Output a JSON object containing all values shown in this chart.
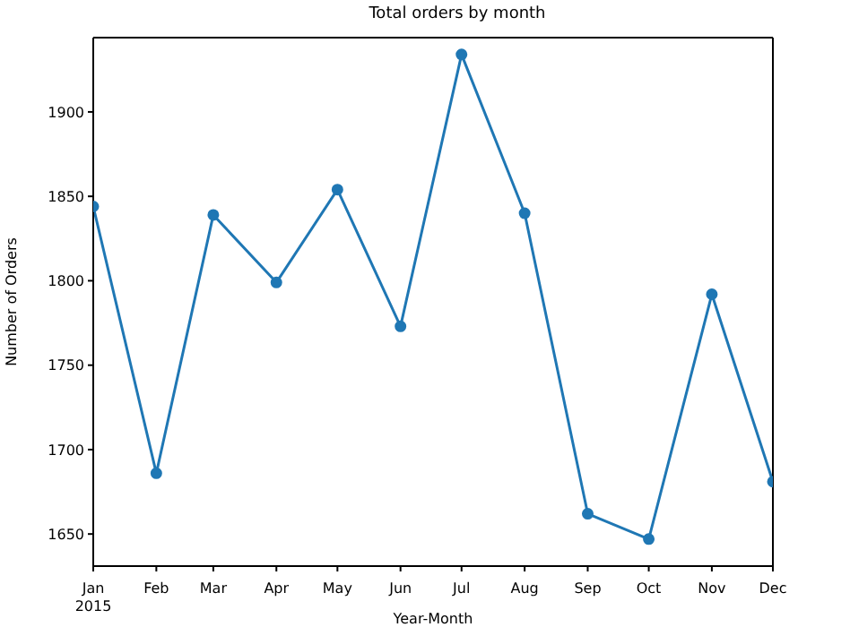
{
  "chart_data": {
    "type": "line",
    "title": "Total orders by month",
    "xlabel": "Year-Month",
    "ylabel": "Number of Orders",
    "x": [
      "2015-01",
      "2015-02",
      "2015-03",
      "2015-04",
      "2015-05",
      "2015-06",
      "2015-07",
      "2015-08",
      "2015-09",
      "2015-10",
      "2015-11",
      "2015-12"
    ],
    "series": [
      {
        "color": "#1f77b4",
        "values": [
          1844,
          1686,
          1839,
          1799,
          1854,
          1773,
          1934,
          1840,
          1662,
          1647,
          1792,
          1681
        ]
      }
    ],
    "xlim": [
      "2015-01",
      "2015-12"
    ],
    "xticks": [
      {
        "value": "2015-01",
        "label": "Jan\n2015"
      },
      {
        "value": "2015-02",
        "label": "Feb"
      },
      {
        "value": "2015-03",
        "label": "Mar"
      },
      {
        "value": "2015-04",
        "label": "Apr"
      },
      {
        "value": "2015-05",
        "label": "May"
      },
      {
        "value": "2015-06",
        "label": "Jun"
      },
      {
        "value": "2015-07",
        "label": "Jul"
      },
      {
        "value": "2015-08",
        "label": "Aug"
      },
      {
        "value": "2015-09",
        "label": "Sep"
      },
      {
        "value": "2015-10",
        "label": "Oct"
      },
      {
        "value": "2015-11",
        "label": "Nov"
      },
      {
        "value": "2015-12",
        "label": "Dec"
      }
    ],
    "ylim": [
      1631,
      1944
    ],
    "yticks": [
      1650,
      1700,
      1750,
      1800,
      1850,
      1900
    ],
    "marker": "circle",
    "line_style": "solid",
    "grid": false,
    "legend": false
  }
}
